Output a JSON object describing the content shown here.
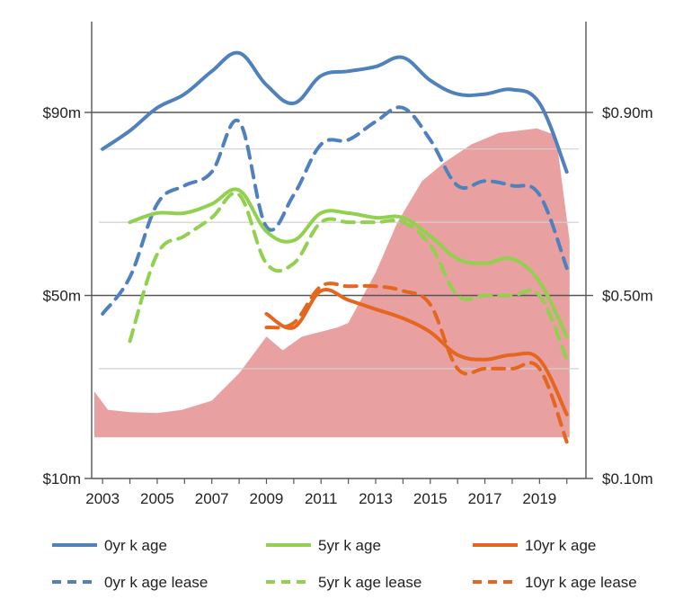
{
  "chart_data": {
    "type": "line",
    "x": [
      2003,
      2004,
      2005,
      2006,
      2007,
      2008,
      2009,
      2010,
      2011,
      2012,
      2013,
      2014,
      2015,
      2016,
      2017,
      2018,
      2019,
      2020
    ],
    "x_ticks": [
      2003,
      2005,
      2007,
      2009,
      2011,
      2013,
      2015,
      2017,
      2019
    ],
    "x_tick_labels": [
      "2003",
      "2005",
      "2007",
      "2009",
      "2011",
      "2013",
      "2015",
      "2017",
      "2019"
    ],
    "xlim": [
      2002.6,
      2020.7
    ],
    "ylim_left": [
      10,
      90.0
    ],
    "left_ticks": [
      10,
      50,
      90
    ],
    "left_tick_labels": [
      "$10m",
      "$50m",
      "$90m"
    ],
    "ylim_right": [
      0.1,
      0.9
    ],
    "right_ticks": [
      0.1,
      0.5,
      0.9
    ],
    "right_tick_labels": [
      "$0.10m",
      "$0.50m",
      "$0.90m"
    ],
    "grid_minor_left": [
      34,
      66,
      82
    ],
    "area_series": {
      "axis": "right",
      "color": "#e8a0a0",
      "base": 0.19,
      "x": [
        2002.7,
        2003.2,
        2004,
        2005,
        2005.9,
        2007,
        2008,
        2009,
        2009.6,
        2010.3,
        2011.6,
        2012,
        2013,
        2013.8,
        2014.7,
        2015.5,
        2016.5,
        2017.5,
        2018.2,
        2018.9,
        2019.6,
        2020.1
      ],
      "values": [
        0.29,
        0.25,
        0.245,
        0.243,
        0.25,
        0.27,
        0.33,
        0.41,
        0.38,
        0.41,
        0.43,
        0.44,
        0.55,
        0.66,
        0.75,
        0.79,
        0.83,
        0.855,
        0.86,
        0.865,
        0.85,
        0.62
      ]
    },
    "series": [
      {
        "name": "0yr k age",
        "dash": "solid",
        "color": "#4f81bd",
        "x": [
          2003,
          2004,
          2005,
          2006,
          2007,
          2008,
          2009,
          2010,
          2011,
          2012,
          2013,
          2014,
          2015,
          2016,
          2017,
          2018,
          2019,
          2020
        ],
        "values": [
          82,
          86,
          91,
          94,
          99,
          103,
          96,
          92,
          98,
          99,
          100,
          102,
          97,
          94,
          94,
          95,
          92,
          77
        ]
      },
      {
        "name": "0yr k age lease",
        "dash": "dashed",
        "color": "#4f81bd",
        "x": [
          2003,
          2004,
          2005,
          2006,
          2007,
          2008,
          2009,
          2010,
          2011,
          2012,
          2013,
          2014,
          2015,
          2016,
          2017,
          2018,
          2019,
          2020
        ],
        "values": [
          46,
          54,
          70,
          74,
          77,
          88,
          65,
          72,
          83,
          84,
          88,
          91,
          84,
          74,
          75,
          74,
          72,
          56
        ]
      },
      {
        "name": "5yr k age",
        "dash": "solid",
        "color": "#92d050",
        "x": [
          2004,
          2005,
          2006,
          2007,
          2008,
          2009,
          2010,
          2011,
          2012,
          2013,
          2014,
          2015,
          2016,
          2017,
          2018,
          2019,
          2020
        ],
        "values": [
          66,
          68,
          68,
          70,
          73,
          64,
          62,
          68,
          68,
          67,
          67,
          63,
          58,
          57,
          58,
          53,
          41
        ]
      },
      {
        "name": "5yr k age lease",
        "dash": "dashed",
        "color": "#92d050",
        "x": [
          2004,
          2005,
          2006,
          2007,
          2008,
          2009,
          2010,
          2011,
          2012,
          2013,
          2014,
          2015,
          2016,
          2017,
          2018,
          2019,
          2020
        ],
        "values": [
          40,
          59,
          63,
          67,
          72,
          57,
          57,
          66,
          66,
          66,
          66,
          61,
          50,
          50,
          50,
          50,
          36
        ]
      },
      {
        "name": "10yr k age",
        "dash": "solid",
        "color": "#e4661f",
        "x": [
          2009,
          2010,
          2011,
          2012,
          2013,
          2014,
          2015,
          2016,
          2017,
          2018,
          2019,
          2020
        ],
        "values": [
          46,
          43,
          51,
          49,
          47,
          45,
          42,
          37,
          36,
          37,
          36,
          24
        ]
      },
      {
        "name": "10yr k age lease",
        "dash": "dashed",
        "color": "#e4661f",
        "x": [
          2009,
          2010,
          2011,
          2012,
          2013,
          2014,
          2015,
          2016,
          2017,
          2018,
          2019,
          2020
        ],
        "values": [
          43,
          44,
          52,
          52,
          52,
          51,
          48,
          34,
          34,
          34,
          34,
          18
        ]
      }
    ],
    "legend": {
      "placement": "bottom",
      "items": [
        {
          "label": "0yr k age",
          "dash": "solid",
          "color": "#4f81bd"
        },
        {
          "label": "5yr k age",
          "dash": "solid",
          "color": "#92d050"
        },
        {
          "label": "10yr k age",
          "dash": "solid",
          "color": "#e4661f"
        },
        {
          "label": "0yr k age lease",
          "dash": "dashed",
          "color": "#4f81bd"
        },
        {
          "label": "5yr k age lease",
          "dash": "dashed",
          "color": "#92d050"
        },
        {
          "label": "10yr k age lease",
          "dash": "dashed",
          "color": "#e4661f"
        }
      ]
    },
    "grid": true
  }
}
